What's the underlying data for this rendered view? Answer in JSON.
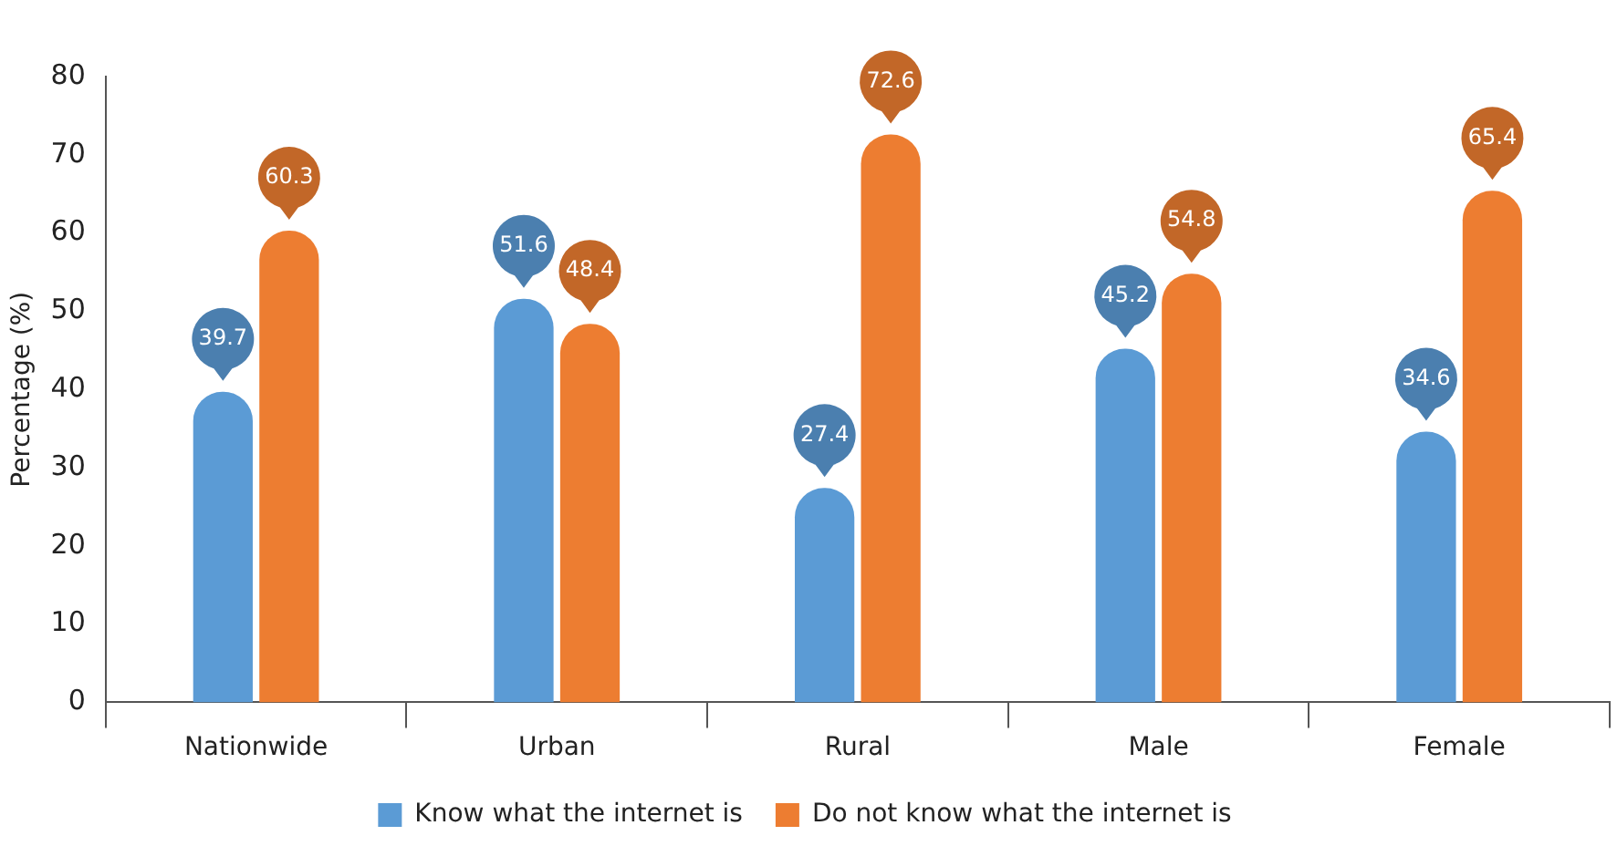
{
  "chart_data": {
    "type": "bar",
    "ylabel": "Percentage (%)",
    "categories": [
      "Nationwide",
      "Urban",
      "Rural",
      "Male",
      "Female"
    ],
    "series": [
      {
        "name": "Know what the internet is",
        "color": "#5b9bd5",
        "values": [
          39.7,
          51.6,
          27.4,
          45.2,
          34.6
        ]
      },
      {
        "name": "Do not know what the internet is",
        "color": "#ed7d31",
        "values": [
          60.3,
          48.4,
          72.6,
          54.8,
          65.4
        ]
      }
    ],
    "ylim": [
      0,
      80
    ],
    "yticks": [
      0,
      10,
      20,
      30,
      40,
      50,
      60,
      70,
      80
    ],
    "grid": false,
    "legend": "bottom",
    "data_labels": true
  }
}
